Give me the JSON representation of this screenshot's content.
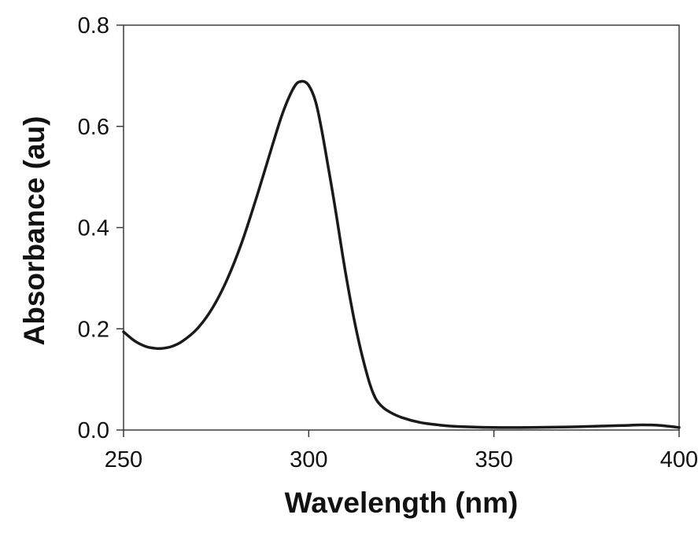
{
  "chart_data": {
    "type": "line",
    "title": "",
    "xlabel": "Wavelength (nm)",
    "ylabel": "Absorbance (au)",
    "xlim": [
      250,
      400
    ],
    "ylim": [
      0,
      0.8
    ],
    "xticks": [
      "250",
      "300",
      "350",
      "400"
    ],
    "yticks": [
      "0.0",
      "0.2",
      "0.4",
      "0.6",
      "0.8"
    ],
    "grid": false,
    "legend": "none",
    "colors": {
      "line": "#1a1a1a",
      "axes": "#3a3a3a"
    },
    "series": [
      {
        "x": [
          250,
          253,
          256,
          258,
          260,
          263,
          266,
          270,
          274,
          278,
          282,
          286,
          290,
          293,
          296,
          298,
          300,
          302,
          304,
          307,
          310,
          313,
          316,
          318,
          320,
          322,
          325,
          330,
          335,
          340,
          350,
          360,
          370,
          380,
          385,
          390,
          395,
          400
        ],
        "y": [
          0.194,
          0.176,
          0.165,
          0.162,
          0.161,
          0.165,
          0.176,
          0.201,
          0.241,
          0.298,
          0.372,
          0.462,
          0.558,
          0.627,
          0.677,
          0.689,
          0.681,
          0.645,
          0.573,
          0.445,
          0.308,
          0.192,
          0.103,
          0.063,
          0.045,
          0.035,
          0.025,
          0.015,
          0.01,
          0.007,
          0.005,
          0.005,
          0.006,
          0.008,
          0.009,
          0.01,
          0.009,
          0.005
        ]
      }
    ]
  }
}
